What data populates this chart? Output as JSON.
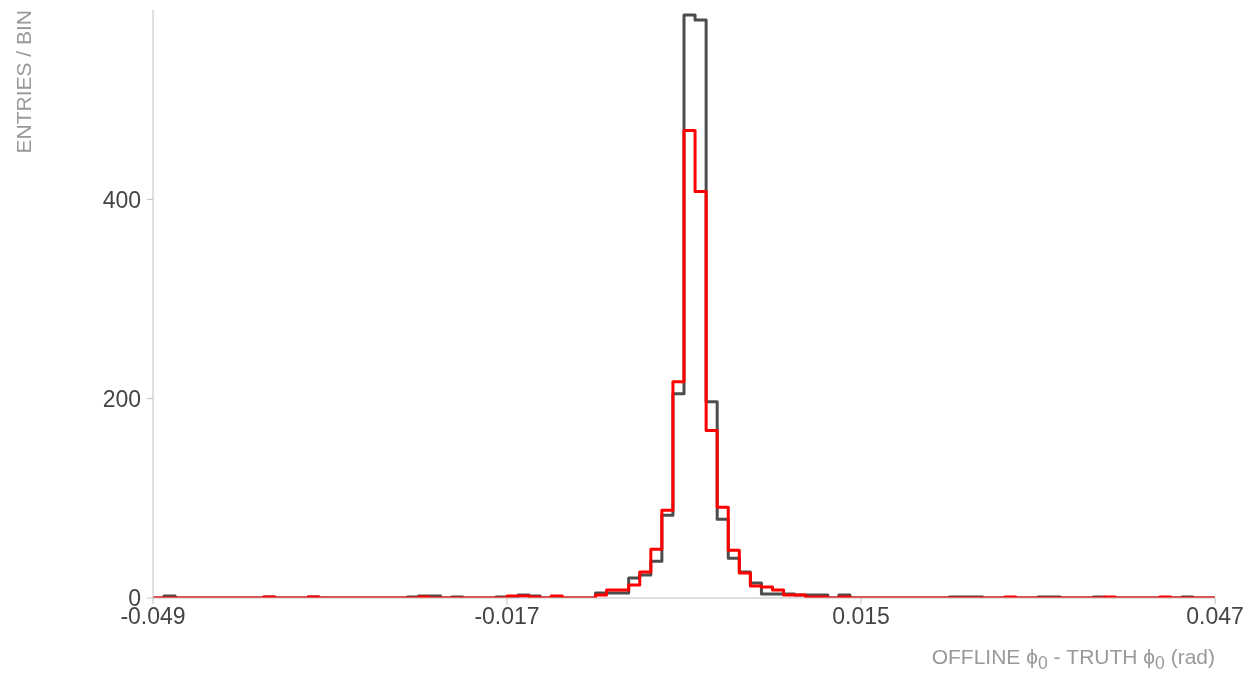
{
  "chart_data": {
    "type": "histogram",
    "xlabel": "OFFLINE ϕ$_{0}$ - TRUTH ϕ$_{0}$ (rad)",
    "ylabel": "ENTRIES / BIN",
    "bins": [
      -0.049,
      -0.048,
      -0.047,
      -0.046,
      -0.045,
      -0.044,
      -0.043,
      -0.042,
      -0.041,
      -0.04,
      -0.039,
      -0.038,
      -0.037,
      -0.036,
      -0.035,
      -0.034,
      -0.033,
      -0.032,
      -0.031,
      -0.03,
      -0.029,
      -0.028,
      -0.027,
      -0.026,
      -0.025,
      -0.024,
      -0.023,
      -0.022,
      -0.021,
      -0.02,
      -0.019,
      -0.018,
      -0.017,
      -0.016,
      -0.015,
      -0.014,
      -0.013,
      -0.012,
      -0.011,
      -0.01,
      -0.009,
      -0.008,
      -0.007,
      -0.006,
      -0.005,
      -0.004,
      -0.003,
      -0.002,
      -0.001,
      0,
      0.001,
      0.002,
      0.003,
      0.004,
      0.005,
      0.006,
      0.007,
      0.008,
      0.009,
      0.01,
      0.011,
      0.012,
      0.013,
      0.014,
      0.015,
      0.016,
      0.017,
      0.018,
      0.019,
      0.02,
      0.021,
      0.022,
      0.023,
      0.024,
      0.025,
      0.026,
      0.027,
      0.028,
      0.029,
      0.03,
      0.031,
      0.032,
      0.033,
      0.034,
      0.035,
      0.036,
      0.037,
      0.038,
      0.039,
      0.04,
      0.041,
      0.042,
      0.043,
      0.044,
      0.045,
      0.046,
      0.047
    ],
    "series": [
      {
        "color": "#4d4d4d",
        "values": [
          0,
          2,
          0,
          0,
          0,
          0,
          0,
          0,
          0,
          0,
          1,
          0,
          0,
          0,
          1,
          0,
          0,
          0,
          0,
          0,
          0,
          0,
          0,
          1,
          2,
          2,
          0,
          1,
          0,
          0,
          0,
          1,
          1,
          3,
          2,
          0,
          1,
          0,
          0,
          0,
          5,
          5,
          5,
          20,
          23,
          37,
          83,
          205,
          585,
          580,
          197,
          79,
          40,
          26,
          15,
          4,
          4,
          4,
          3,
          3,
          3,
          0,
          3,
          0,
          0,
          0,
          0,
          0,
          0,
          0,
          0,
          0,
          1,
          1,
          1,
          0,
          0,
          0,
          0,
          0,
          1,
          1,
          0,
          0,
          0,
          1,
          0,
          0,
          0,
          0,
          0,
          0,
          0,
          1,
          0,
          0
        ]
      },
      {
        "color": "#ff0000",
        "values": [
          0,
          0,
          0,
          0,
          0,
          0,
          0,
          0,
          0,
          0,
          1,
          0,
          0,
          0,
          1,
          0,
          0,
          0,
          0,
          0,
          0,
          0,
          0,
          0,
          1,
          0,
          0,
          0,
          0,
          0,
          0,
          0,
          2,
          2,
          1,
          0,
          2,
          0,
          0,
          0,
          3,
          8,
          8,
          13,
          26,
          49,
          88,
          217,
          469,
          408,
          168,
          91,
          48,
          25,
          12,
          11,
          8,
          3,
          3,
          1,
          1,
          0,
          1,
          0,
          0,
          0,
          0,
          0,
          0,
          0,
          0,
          0,
          0,
          0,
          0,
          0,
          0,
          1,
          0,
          0,
          0,
          0,
          0,
          0,
          0,
          0,
          1,
          0,
          0,
          0,
          0,
          1,
          0,
          0,
          0,
          0
        ]
      }
    ],
    "xlim": [
      -0.049,
      0.047
    ],
    "xticks": [
      -0.049,
      -0.017,
      0.015,
      0.047
    ],
    "ylim": [
      0,
      590
    ],
    "yticks": [
      0,
      200,
      400
    ]
  }
}
